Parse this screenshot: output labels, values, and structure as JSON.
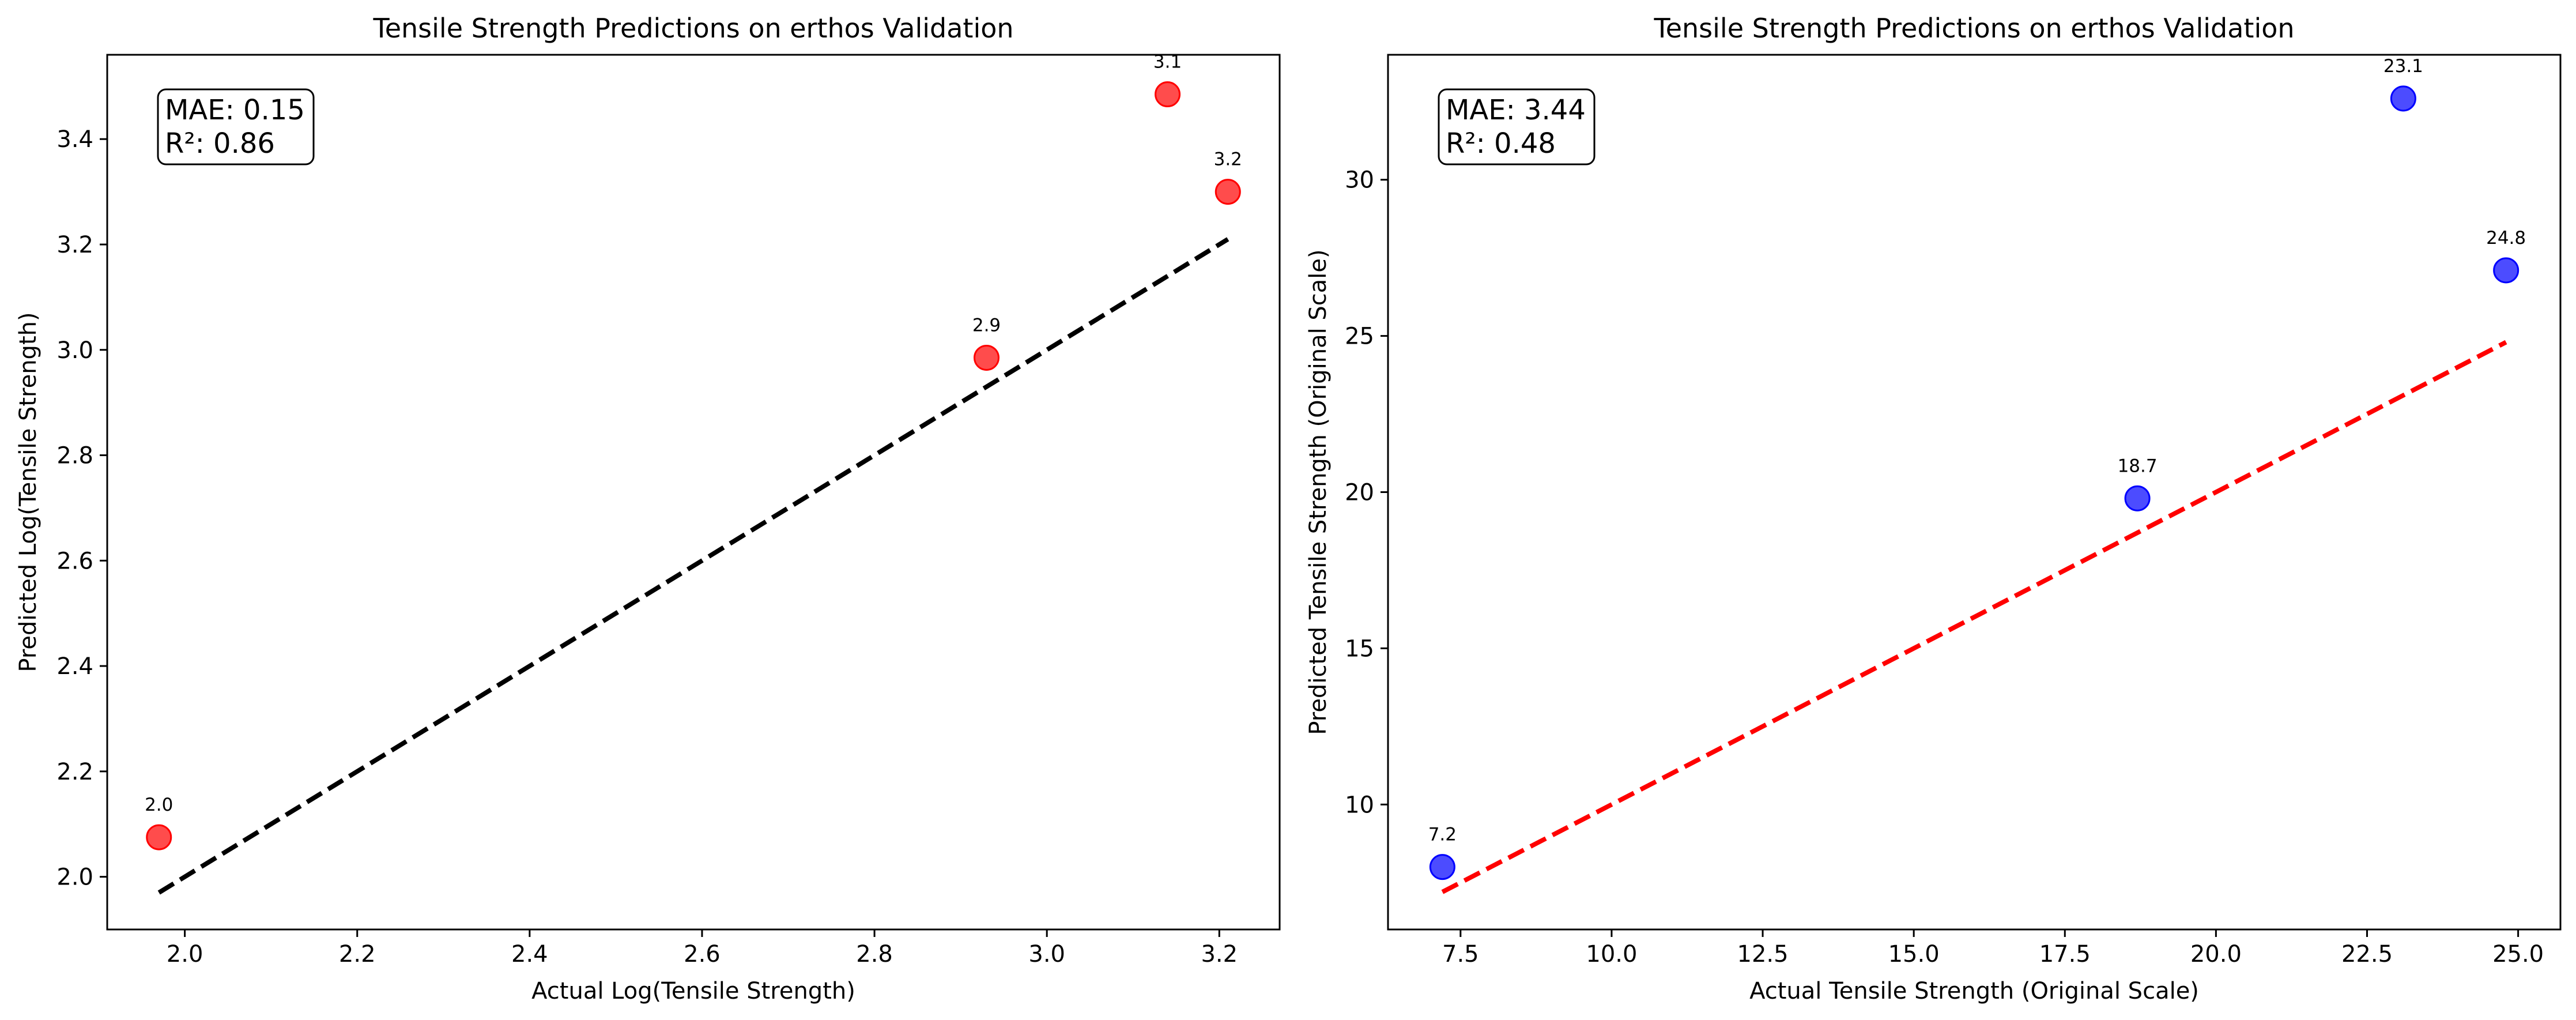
{
  "chart_data": [
    {
      "type": "scatter",
      "title": "Tensile Strength Predictions on erthos Validation",
      "xlabel": "Actual Log(Tensile Strength)",
      "ylabel": "Predicted Log(Tensile Strength)",
      "xlim": [
        1.91,
        3.27
      ],
      "ylim": [
        1.9,
        3.56
      ],
      "xticks": [
        2.0,
        2.2,
        2.4,
        2.6,
        2.8,
        3.0,
        3.2
      ],
      "xtick_labels": [
        "2.0",
        "2.2",
        "2.4",
        "2.6",
        "2.8",
        "3.0",
        "3.2"
      ],
      "yticks": [
        2.0,
        2.2,
        2.4,
        2.6,
        2.8,
        3.0,
        3.2,
        3.4
      ],
      "ytick_labels": [
        "2.0",
        "2.2",
        "2.4",
        "2.6",
        "2.8",
        "3.0",
        "3.2",
        "3.4"
      ],
      "grid": false,
      "marker_color": "#ff0000",
      "reference_line": {
        "x": [
          1.97,
          3.21
        ],
        "y": [
          1.97,
          3.21
        ],
        "color": "#000000",
        "style": "dashed"
      },
      "points": [
        {
          "x": 1.97,
          "y": 2.075,
          "label": "2.0"
        },
        {
          "x": 2.93,
          "y": 2.985,
          "label": "2.9"
        },
        {
          "x": 3.14,
          "y": 3.485,
          "label": "3.1"
        },
        {
          "x": 3.21,
          "y": 3.3,
          "label": "3.2"
        }
      ],
      "annotation": {
        "mae": "MAE: 0.15",
        "r2": "R²: 0.86"
      }
    },
    {
      "type": "scatter",
      "title": "Tensile Strength Predictions on erthos Validation",
      "xlabel": "Actual Tensile Strength (Original Scale)",
      "ylabel": "Predicted Tensile Strength (Original Scale)",
      "xlim": [
        6.3,
        25.7
      ],
      "ylim": [
        6.0,
        34.0
      ],
      "xticks": [
        7.5,
        10.0,
        12.5,
        15.0,
        17.5,
        20.0,
        22.5,
        25.0
      ],
      "xtick_labels": [
        "7.5",
        "10.0",
        "12.5",
        "15.0",
        "17.5",
        "20.0",
        "22.5",
        "25.0"
      ],
      "yticks": [
        10,
        15,
        20,
        25,
        30
      ],
      "ytick_labels": [
        "10",
        "15",
        "20",
        "25",
        "30"
      ],
      "grid": false,
      "marker_color": "#0000ff",
      "reference_line": {
        "x": [
          7.2,
          24.8
        ],
        "y": [
          7.2,
          24.8
        ],
        "color": "#ff0000",
        "style": "dashed"
      },
      "points": [
        {
          "x": 7.2,
          "y": 8.0,
          "label": "7.2"
        },
        {
          "x": 18.7,
          "y": 19.8,
          "label": "18.7"
        },
        {
          "x": 23.1,
          "y": 32.6,
          "label": "23.1"
        },
        {
          "x": 24.8,
          "y": 27.1,
          "label": "24.8"
        }
      ],
      "annotation": {
        "mae": "MAE: 3.44",
        "r2": "R²: 0.48"
      }
    }
  ]
}
